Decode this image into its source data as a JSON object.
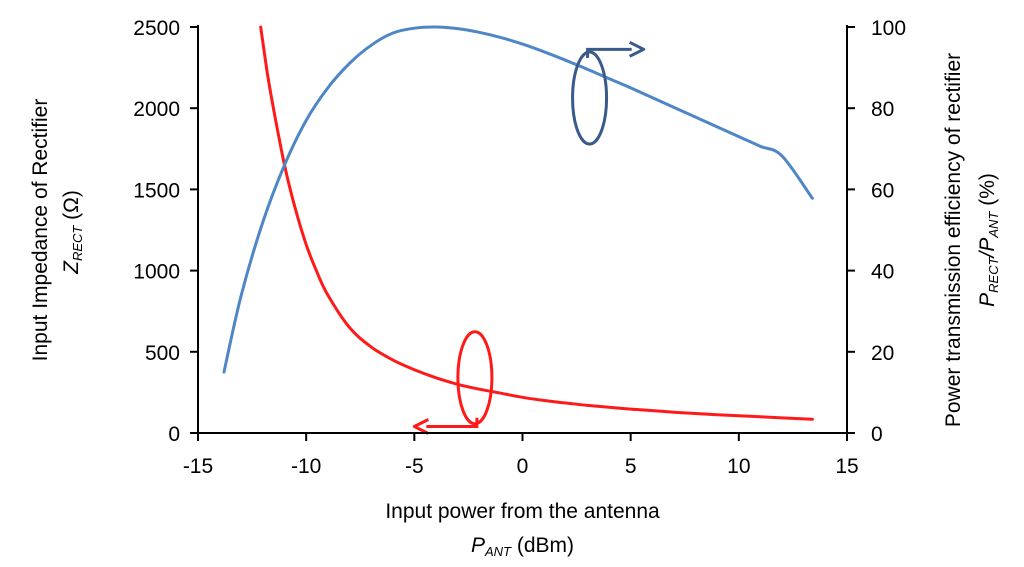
{
  "chart_data": {
    "type": "line",
    "xlabel": "Input power from the antenna",
    "xlabel_symbol": "P",
    "xlabel_subscript": "ANT",
    "xlabel_unit": " (dBm)",
    "ylabel_left": "Input Impedance of Rectifier",
    "ylabel_left_symbol": "Z",
    "ylabel_left_subscript": "RECT",
    "ylabel_left_unit": " (Ω)",
    "ylabel_right": "Power transmission efficiency of rectifier",
    "ylabel_right_p1": "P",
    "ylabel_right_sub1": "RECT",
    "ylabel_right_p2": "/P",
    "ylabel_right_sub2": "ANT",
    "ylabel_right_unit": " (%)",
    "xlim": [
      -15,
      15
    ],
    "ylim_left": [
      0,
      2500
    ],
    "ylim_right": [
      0,
      100
    ],
    "x_ticks": [
      "-15",
      "-10",
      "-5",
      "0",
      "5",
      "10",
      "15"
    ],
    "y_left_ticks": [
      "0",
      "500",
      "1000",
      "1500",
      "2000",
      "2500"
    ],
    "y_right_ticks": [
      "0",
      "20",
      "40",
      "60",
      "80",
      "100"
    ],
    "grid": false,
    "series": [
      {
        "axis": "left",
        "color": "#ff1a1a",
        "x": [
          -12.1,
          -11.8,
          -11.5,
          -11.0,
          -10.5,
          -10.0,
          -9.5,
          -9.0,
          -8.0,
          -7.0,
          -6.0,
          -5.0,
          -4.0,
          -3.0,
          -2.0,
          -1.0,
          0.0,
          1.0,
          2.0,
          3.0,
          4.0,
          5.0,
          6.0,
          7.0,
          8.0,
          9.0,
          10.0,
          11.0,
          12.0,
          13.4
        ],
        "y": [
          2500,
          2220,
          1990,
          1650,
          1380,
          1160,
          990,
          850,
          650,
          530,
          450,
          390,
          340,
          300,
          270,
          245,
          220,
          200,
          185,
          170,
          158,
          147,
          138,
          128,
          120,
          112,
          106,
          100,
          93,
          85
        ]
      },
      {
        "axis": "right",
        "color": "#4f86c6",
        "x": [
          -13.8,
          -13.0,
          -12.0,
          -11.0,
          -10.0,
          -9.0,
          -8.0,
          -7.0,
          -6.0,
          -5.0,
          -4.0,
          -3.0,
          -2.0,
          -1.0,
          0.0,
          1.0,
          2.0,
          3.0,
          4.0,
          5.0,
          6.0,
          7.0,
          8.0,
          9.0,
          10.0,
          11.0,
          12.0,
          13.4
        ],
        "y": [
          15,
          34,
          52,
          66,
          77,
          85,
          91,
          95.5,
          98.5,
          99.7,
          100,
          99.6,
          98.7,
          97.4,
          95.8,
          93.9,
          91.8,
          89.6,
          87.3,
          85.0,
          82.6,
          80.2,
          77.8,
          75.4,
          73.0,
          70.6,
          68.2,
          57.8
        ]
      }
    ],
    "annotations": [
      {
        "type": "ellipse-arrow",
        "points_to": "right",
        "color": "#3a5a8c",
        "x": 3.1,
        "y_right": 82.5,
        "arrow_to_x": 5.6,
        "arrow_y_right": 94.5
      },
      {
        "type": "ellipse-arrow",
        "points_to": "left",
        "color": "#ff1a1a",
        "x": -2.2,
        "y_left": 340,
        "arrow_to_x": -5.0,
        "arrow_y_left": 40
      }
    ]
  }
}
